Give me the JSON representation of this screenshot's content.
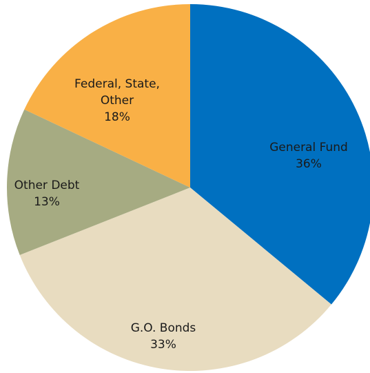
{
  "chart_data": {
    "type": "pie",
    "slices": [
      {
        "label_lines": [
          "General Fund"
        ],
        "value": 36,
        "value_text": "36%",
        "color": "#0070c0"
      },
      {
        "label_lines": [
          "G.O. Bonds"
        ],
        "value": 33,
        "value_text": "33%",
        "color": "#e8dcc0"
      },
      {
        "label_lines": [
          "Other Debt"
        ],
        "value": 13,
        "value_text": "13%",
        "color": "#a6ab82"
      },
      {
        "label_lines": [
          "Federal, State,",
          "Other"
        ],
        "value": 18,
        "value_text": "18%",
        "color": "#f9b046"
      }
    ],
    "start": "12 o'clock",
    "direction": "clockwise",
    "legend": "none"
  }
}
